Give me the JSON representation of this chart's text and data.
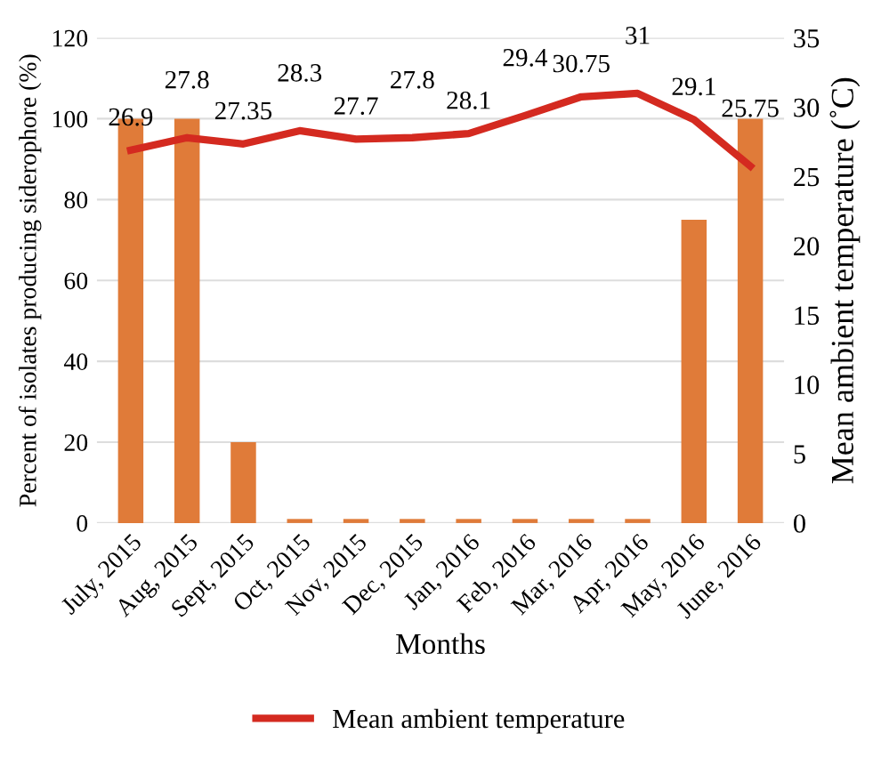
{
  "chart_data": {
    "type": "bar",
    "xlabel": "Months",
    "ylabel": "Percent of isolates producing siderophore (%)",
    "y2label": "Mean ambient temperature (˚C)",
    "categories": [
      "July, 2015",
      "Aug, 2015",
      "Sept, 2015",
      "Oct, 2015",
      "Nov, 2015",
      "Dec, 2015",
      "Jan, 2016",
      "Feb, 2016",
      "Mar, 2016",
      "Apr, 2016",
      "May, 2016",
      "June, 2016"
    ],
    "series": [
      {
        "color": "#e07b39",
        "values": [
          100,
          100,
          20,
          1,
          1,
          1,
          1,
          1,
          1,
          1,
          75,
          100
        ]
      },
      {
        "type": "line",
        "axis": "y2",
        "name": "Mean ambient temperature",
        "color": "#d42a20",
        "values": [
          26.9,
          27.8,
          27.35,
          28.3,
          27.7,
          27.8,
          28.1,
          29.4,
          30.75,
          31,
          29.1,
          25.75
        ],
        "value_labels": [
          "26.9",
          "27.8",
          "27.35",
          "28.3",
          "27.7",
          "27.8",
          "28.1",
          "29.4",
          "30.75",
          "31",
          "29.1",
          "25.75"
        ]
      }
    ],
    "ylim": [
      0,
      120
    ],
    "yticks": [
      0,
      20,
      40,
      60,
      80,
      100,
      120
    ],
    "y2lim": [
      0,
      35
    ],
    "y2ticks": [
      0,
      5,
      10,
      15,
      20,
      25,
      30,
      35
    ],
    "grid": "y",
    "legend": "bottom",
    "marker": "none",
    "line_style": "solid"
  }
}
